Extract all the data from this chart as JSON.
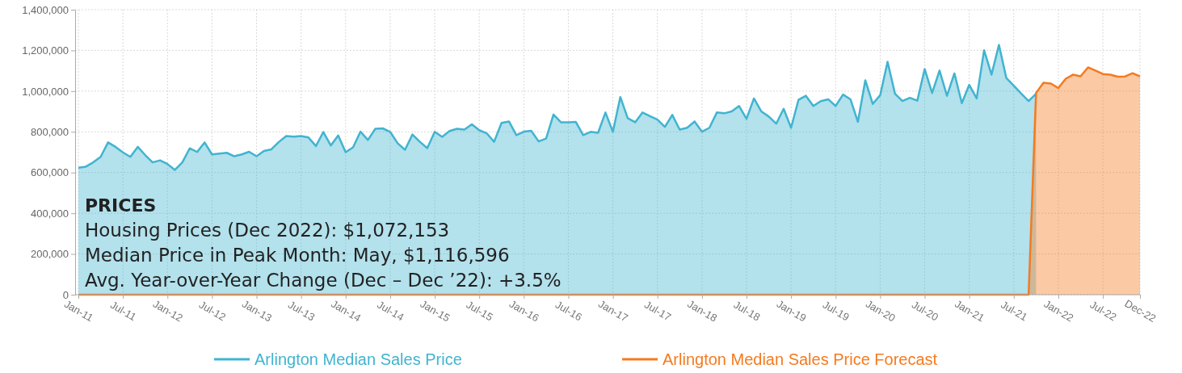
{
  "chart_data": {
    "type": "area",
    "categories": [
      "Jan-11",
      null,
      null,
      null,
      null,
      null,
      "Jul-11",
      null,
      null,
      null,
      null,
      null,
      "Jan-12",
      null,
      null,
      null,
      null,
      null,
      "Jul-12",
      null,
      null,
      null,
      null,
      null,
      "Jan-13",
      null,
      null,
      null,
      null,
      null,
      "Jul-13",
      null,
      null,
      null,
      null,
      null,
      "Jan-14",
      null,
      null,
      null,
      null,
      null,
      "Jul-14",
      null,
      null,
      null,
      null,
      null,
      "Jan-15",
      null,
      null,
      null,
      null,
      null,
      "Jul-15",
      null,
      null,
      null,
      null,
      null,
      "Jan-16",
      null,
      null,
      null,
      null,
      null,
      "Jul-16",
      null,
      null,
      null,
      null,
      null,
      "Jan-17",
      null,
      null,
      null,
      null,
      null,
      "Jul-17",
      null,
      null,
      null,
      null,
      null,
      "Jan-18",
      null,
      null,
      null,
      null,
      null,
      "Jul-18",
      null,
      null,
      null,
      null,
      null,
      "Jan-19",
      null,
      null,
      null,
      null,
      null,
      "Jul-19",
      null,
      null,
      null,
      null,
      null,
      "Jan-20",
      null,
      null,
      null,
      null,
      null,
      "Jul-20",
      null,
      null,
      null,
      null,
      null,
      "Jan-21",
      null,
      null,
      null,
      null,
      null,
      "Jul-21",
      null,
      null,
      null,
      null,
      null,
      "Jan-22",
      null,
      null,
      null,
      null,
      null,
      "Jul-22",
      null,
      null,
      null,
      null,
      "Dec-22"
    ],
    "series": [
      {
        "name": "Arlington Median Sales Price",
        "color": "#41b4d0",
        "values": [
          624000,
          629000,
          650000,
          677000,
          748000,
          726000,
          699000,
          677000,
          726000,
          686000,
          650000,
          660000,
          642000,
          613000,
          650000,
          719000,
          701000,
          748000,
          689000,
          693000,
          697000,
          680000,
          689000,
          702000,
          680000,
          706000,
          714000,
          750000,
          779000,
          776000,
          779000,
          772000,
          730000,
          799000,
          733000,
          782000,
          700000,
          724000,
          801000,
          760000,
          815000,
          817000,
          800000,
          744000,
          712000,
          787000,
          751000,
          720000,
          800000,
          775000,
          804000,
          815000,
          811000,
          837000,
          808000,
          793000,
          751000,
          844000,
          851000,
          784000,
          801000,
          805000,
          753000,
          767000,
          885000,
          847000,
          847000,
          849000,
          784000,
          800000,
          795000,
          895000,
          800000,
          971000,
          867000,
          847000,
          895000,
          877000,
          860000,
          824000,
          883000,
          811000,
          820000,
          851000,
          801000,
          820000,
          895000,
          891000,
          900000,
          927000,
          864000,
          964000,
          900000,
          875000,
          840000,
          913000,
          820000,
          957000,
          977000,
          927000,
          951000,
          960000,
          927000,
          983000,
          960000,
          849000,
          1053000,
          937000,
          980000,
          1144000,
          987000,
          951000,
          967000,
          953000,
          1108000,
          991000,
          1101000,
          977000,
          1087000,
          941000,
          1031000,
          964000,
          1201000,
          1081000,
          1227000,
          1064000,
          1027000,
          988000,
          951000,
          987000,
          null,
          null,
          null,
          null,
          null,
          null,
          null,
          null,
          null,
          null,
          null,
          null,
          null,
          null
        ]
      },
      {
        "name": "Arlington Median Sales Price Forecast",
        "color": "#f57a1f",
        "values": [
          0,
          0,
          0,
          0,
          0,
          0,
          0,
          0,
          0,
          0,
          0,
          0,
          0,
          0,
          0,
          0,
          0,
          0,
          0,
          0,
          0,
          0,
          0,
          0,
          0,
          0,
          0,
          0,
          0,
          0,
          0,
          0,
          0,
          0,
          0,
          0,
          0,
          0,
          0,
          0,
          0,
          0,
          0,
          0,
          0,
          0,
          0,
          0,
          0,
          0,
          0,
          0,
          0,
          0,
          0,
          0,
          0,
          0,
          0,
          0,
          0,
          0,
          0,
          0,
          0,
          0,
          0,
          0,
          0,
          0,
          0,
          0,
          0,
          0,
          0,
          0,
          0,
          0,
          0,
          0,
          0,
          0,
          0,
          0,
          0,
          0,
          0,
          0,
          0,
          0,
          0,
          0,
          0,
          0,
          0,
          0,
          0,
          0,
          0,
          0,
          0,
          0,
          0,
          0,
          0,
          0,
          0,
          0,
          0,
          0,
          0,
          0,
          0,
          0,
          0,
          0,
          0,
          0,
          0,
          0,
          0,
          0,
          0,
          0,
          0,
          0,
          0,
          0,
          0,
          991000,
          1041000,
          1037000,
          1015000,
          1061000,
          1081000,
          1073000,
          1116596,
          1101000,
          1084000,
          1081000,
          1071000,
          1072000,
          1088000,
          1072153
        ]
      }
    ],
    "ylim": [
      0,
      1400000
    ],
    "yticks": [
      0,
      {
        "value": 200000,
        "label": "200,000"
      },
      {
        "value": 400000,
        "label": "400,000"
      },
      {
        "value": 600000,
        "label": "600,000"
      },
      {
        "value": 800000,
        "label": "800,000"
      },
      {
        "value": 1000000,
        "label": "1,000,000"
      },
      {
        "value": 1200000,
        "label": "1,200,000"
      },
      {
        "value": 1400000,
        "label": "1,400,000"
      }
    ],
    "grid": true,
    "legend": "bottom",
    "annotations": [
      "PRICES",
      "Housing Prices (Dec 2022): $1,072,153",
      "Median Price in Peak Month: May, $1,116,596",
      "Avg. Year-over-Year Change (Dec – Dec ’22): +3.5%"
    ]
  }
}
